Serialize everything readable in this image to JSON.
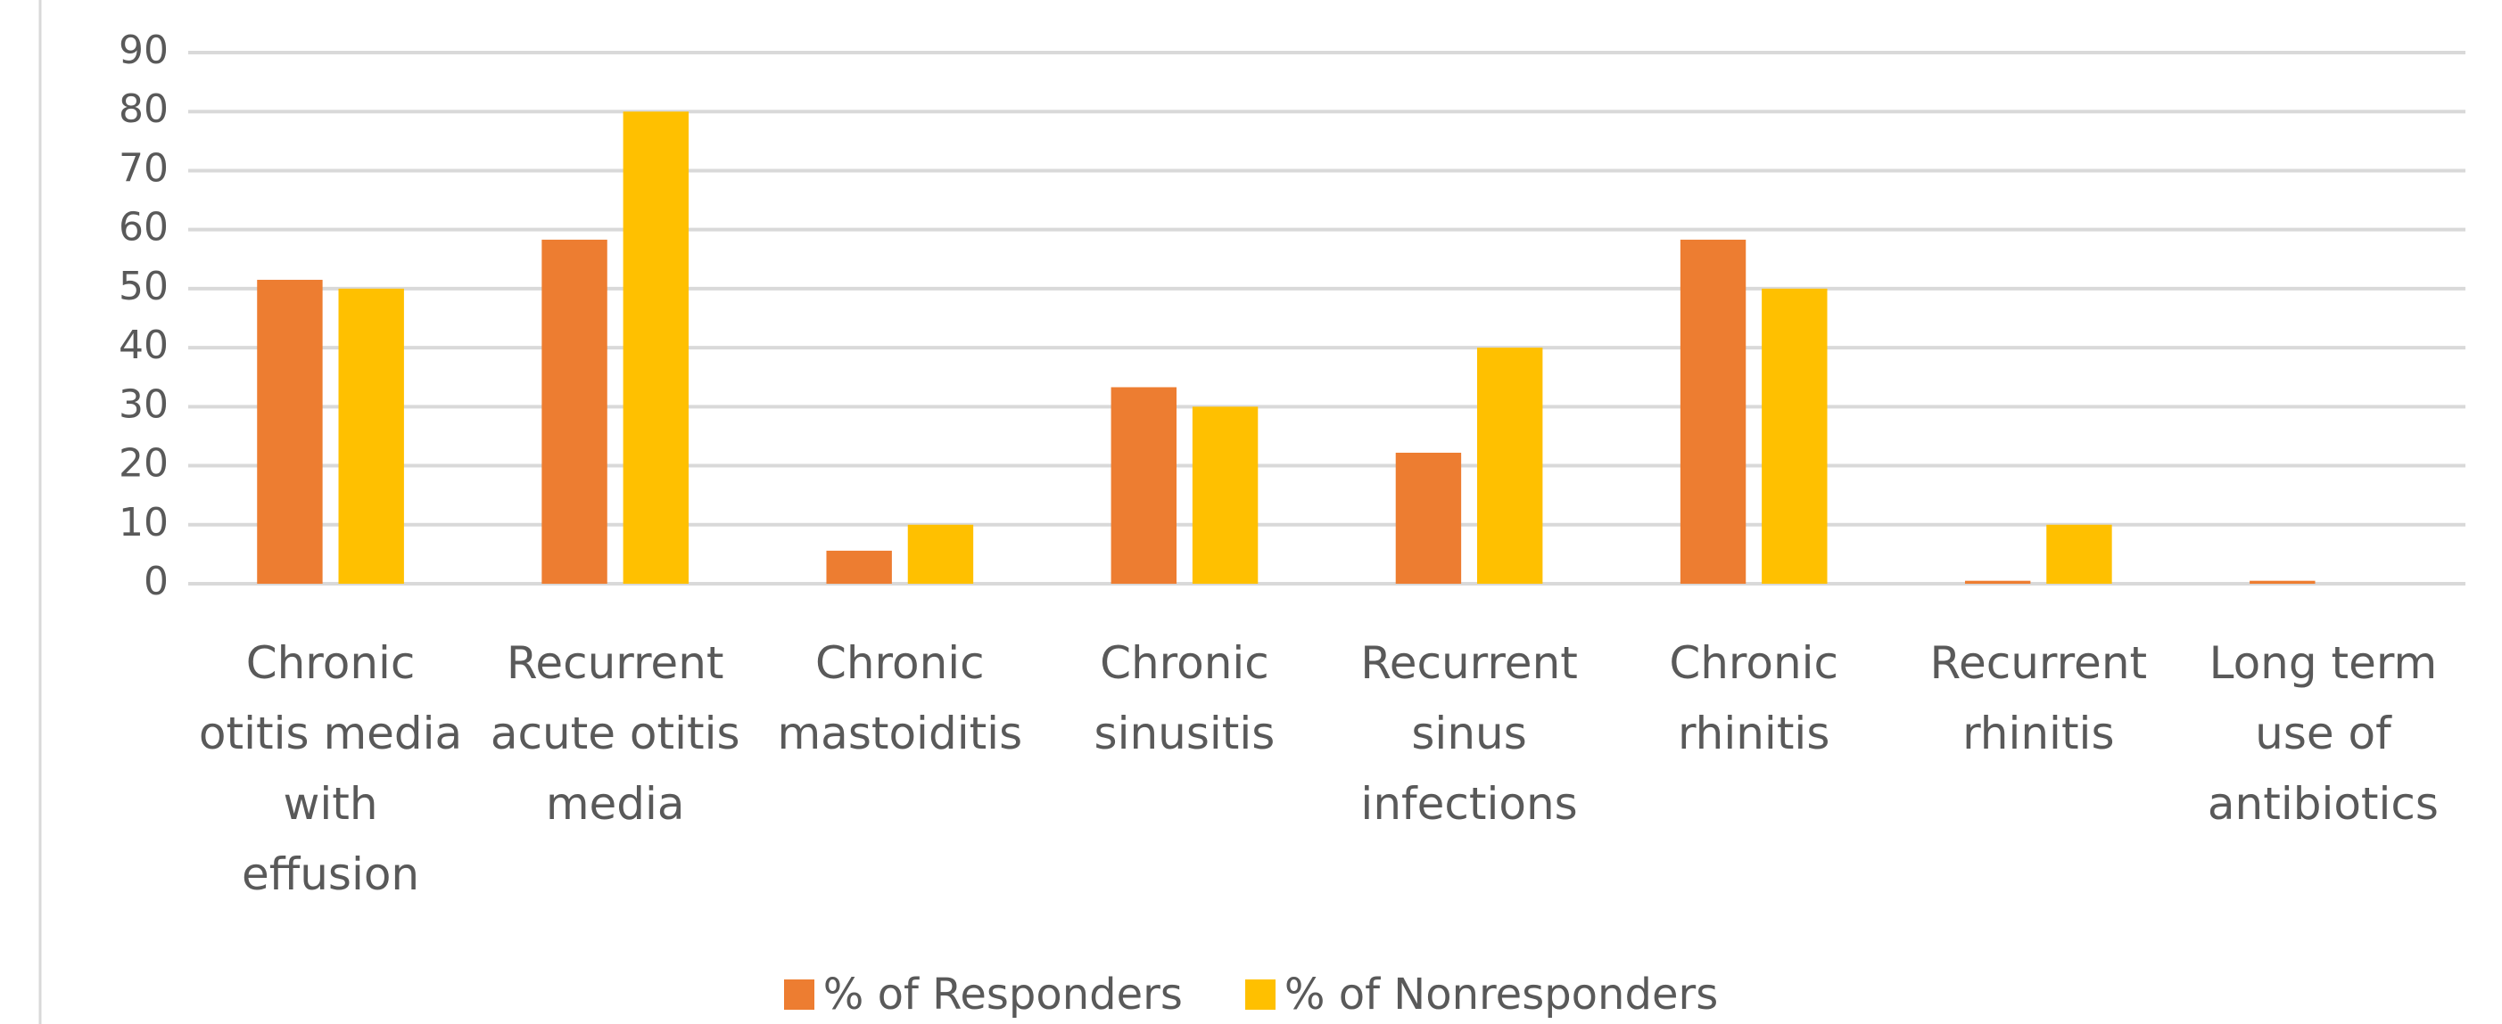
{
  "chart_data": {
    "type": "bar",
    "categories": [
      "Chronic otitis media with effusion",
      "Recurrent acute otitis media",
      "Chronic mastoiditis",
      "Chronic sinusitis",
      "Recurrent sinus infections",
      "Chronic rhinitis",
      "Recurrent rhinitis",
      "Long term use of antibiotics"
    ],
    "series": [
      {
        "name": "% of Responders",
        "color": "#ed7d31",
        "values": [
          51.5,
          58.3,
          5.6,
          33.3,
          22.2,
          58.3,
          0.5,
          0.5
        ]
      },
      {
        "name": "% of Nonresponders",
        "color": "#ffc000",
        "values": [
          50,
          80,
          10,
          30,
          40,
          50,
          10,
          0
        ]
      }
    ],
    "ylim": [
      0,
      90
    ],
    "yticks": [
      0,
      10,
      20,
      30,
      40,
      50,
      60,
      70,
      80,
      90
    ],
    "grid": true,
    "legend": "bottom"
  }
}
